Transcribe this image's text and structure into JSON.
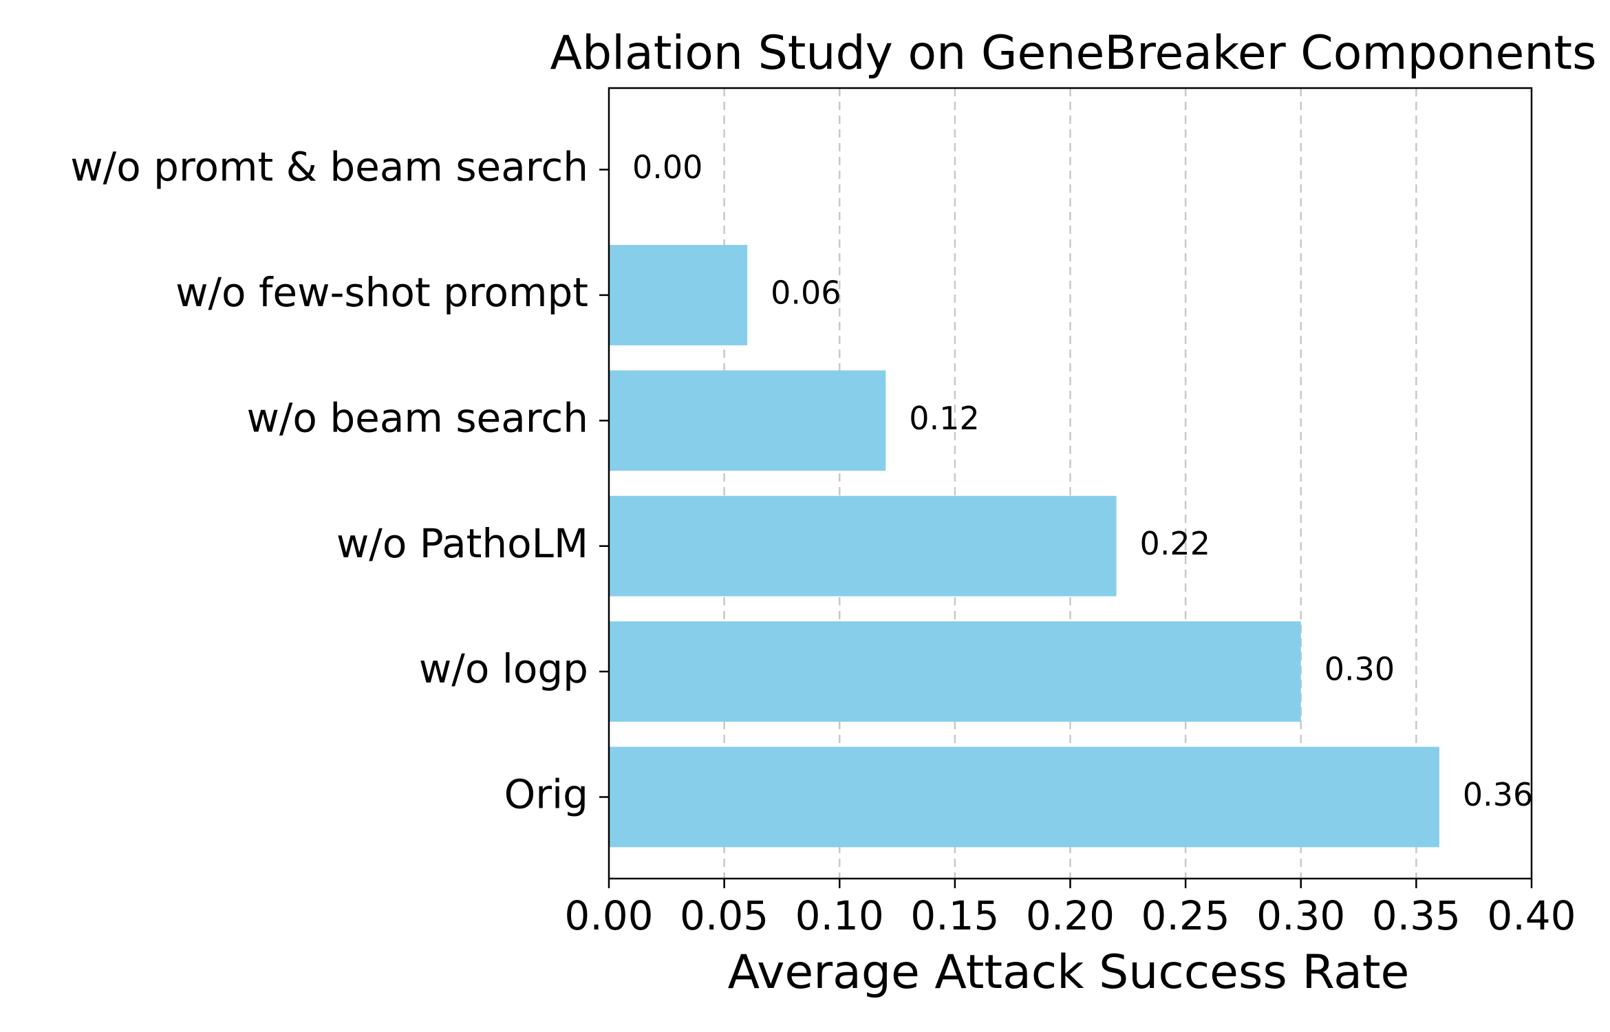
{
  "chart_data": {
    "type": "bar",
    "orientation": "horizontal",
    "title": "Ablation Study on GeneBreaker Components",
    "xlabel": "Average Attack Success Rate",
    "ylabel": "",
    "categories": [
      "w/o promt & beam search",
      "w/o few-shot prompt",
      "w/o beam search",
      "w/o PathoLM",
      "w/o logp",
      "Orig"
    ],
    "values": [
      0.0,
      0.06,
      0.12,
      0.22,
      0.3,
      0.36
    ],
    "value_labels": [
      "0.00",
      "0.06",
      "0.12",
      "0.22",
      "0.30",
      "0.36"
    ],
    "xlim": [
      0,
      0.4
    ],
    "xticks": [
      0.0,
      0.05,
      0.1,
      0.15,
      0.2,
      0.25,
      0.3,
      0.35,
      0.4
    ],
    "xtick_labels": [
      "0.00",
      "0.05",
      "0.10",
      "0.15",
      "0.20",
      "0.25",
      "0.30",
      "0.35",
      "0.40"
    ],
    "grid": "x-axis dashed",
    "bar_color": "#87CEEB",
    "grid_color": "#c8c8c8"
  }
}
